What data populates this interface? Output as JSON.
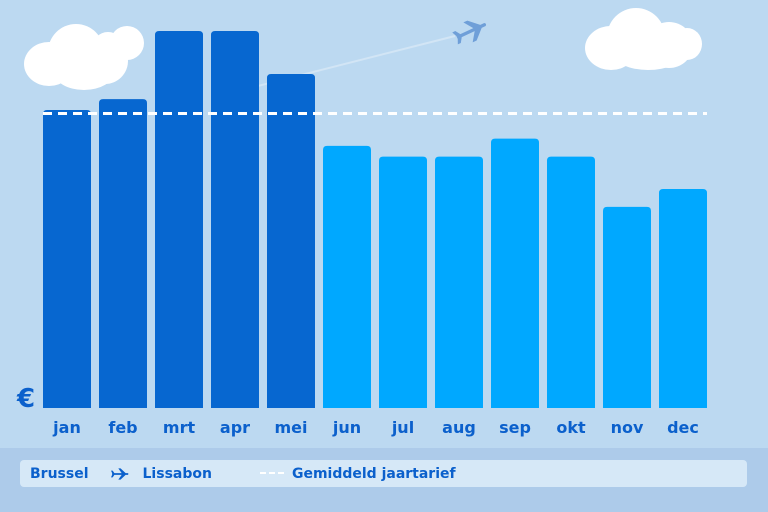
{
  "chart_data": {
    "type": "bar",
    "title": "",
    "xlabel": "",
    "ylabel": "€",
    "categories": [
      "jan",
      "feb",
      "mrt",
      "apr",
      "mei",
      "jun",
      "jul",
      "aug",
      "sep",
      "okt",
      "nov",
      "dec"
    ],
    "values": [
      83,
      86,
      105,
      105,
      93,
      73,
      70,
      70,
      75,
      70,
      56,
      61
    ],
    "ylim": [
      0,
      110
    ],
    "average": 82,
    "highlight_months": [
      "jan",
      "feb",
      "mrt",
      "apr",
      "mei"
    ],
    "grid": false,
    "legend_position": "bottom"
  },
  "legend": {
    "origin": "Brussel",
    "destination": "Lissabon",
    "average_label": "Gemiddeld jaartarief"
  },
  "colors": {
    "background": "#bcd9f1",
    "bar_dark": "#0767d0",
    "bar_light": "#00a8ff",
    "label": "#0b60cc",
    "average_line": "#ffffff",
    "plane": "#6f9fd8"
  },
  "icons": {
    "sky_plane": "airplane-icon",
    "legend_plane": "airplane-icon"
  }
}
